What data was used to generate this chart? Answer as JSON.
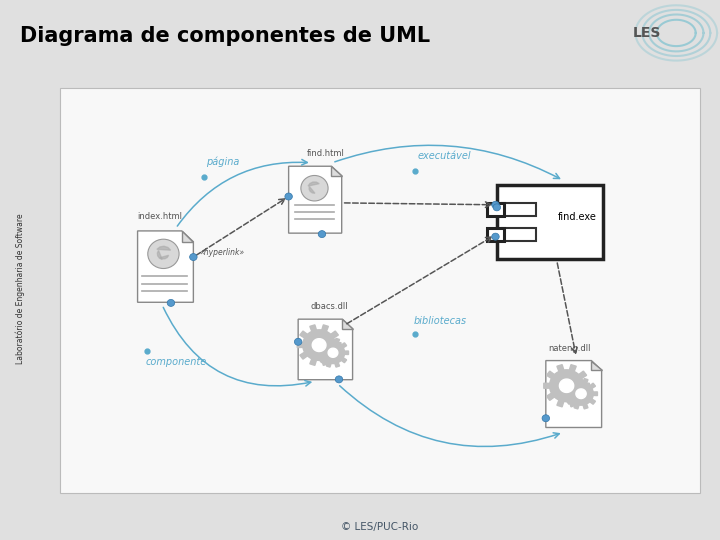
{
  "title": "Diagrama de componentes de UML",
  "footer": "© LES/PUC-Rio",
  "header_bg": "#b5d4d8",
  "footer_bg": "#b5d4d8",
  "main_bg": "#e0e0e0",
  "sidebar_bg": "#c8c8c8",
  "title_color": "#000000",
  "title_fontsize": 15,
  "label_color": "#5aabcc",
  "dark_label_color": "#555555",
  "label_pagina": "página",
  "label_executavel": "executável",
  "label_componente": "componente",
  "label_bibliotecas": "bibliotecas",
  "label_hyperlink": "«hyperlink»",
  "label_index_html": "index.html",
  "label_find_html": "find.html",
  "label_find_exe": "find.exe",
  "label_dbacs_dll": "dbacs.dll",
  "label_nateng_dll": "nateng.dll",
  "sidebar_text": "Laboratório de Engenharia de Software"
}
